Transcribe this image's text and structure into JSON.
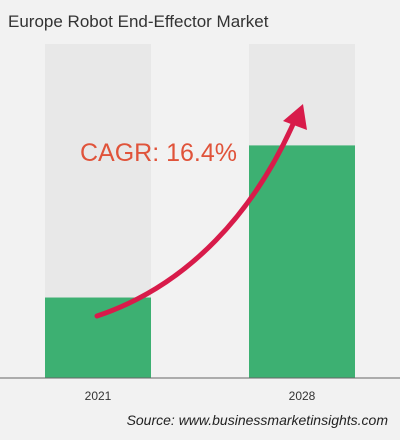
{
  "title": "Europe Robot End-Effector Market",
  "source": "Source: www.businessmarketinsights.com",
  "chart_data": {
    "type": "bar",
    "title": "Europe Robot End-Effector Market",
    "categories": [
      "2021",
      "2028"
    ],
    "values": [
      1,
      2.89
    ],
    "ylim": [
      0,
      4.15
    ],
    "xlabel": "",
    "ylabel": "",
    "grid": false,
    "legend": "none",
    "annotation": "CAGR: 16.4%",
    "colors": {
      "bar": "#3db072",
      "bar_background": "#e8e8e8",
      "arrow": "#d81b4a",
      "annotation": "#e0533a",
      "axis": "#666666"
    }
  }
}
